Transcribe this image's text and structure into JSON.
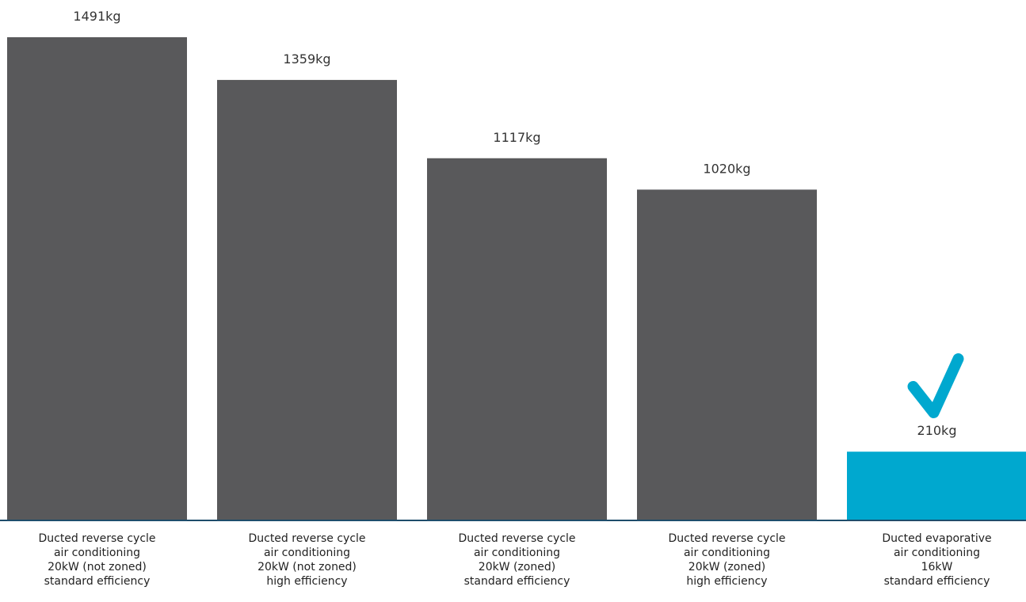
{
  "chart_data": {
    "type": "bar",
    "title": "",
    "xlabel": "",
    "ylabel": "",
    "ylim": [
      0,
      1491
    ],
    "grid": false,
    "legend": "none",
    "unit": "kg",
    "categories": [
      [
        "Ducted reverse cycle",
        "air conditioning",
        "20kW (not zoned)",
        "standard efficiency"
      ],
      [
        "Ducted reverse cycle",
        "air conditioning",
        "20kW (not zoned)",
        "high efficiency"
      ],
      [
        "Ducted reverse cycle",
        "air conditioning",
        "20kW (zoned)",
        "standard efficiency"
      ],
      [
        "Ducted reverse cycle",
        "air conditioning",
        "20kW (zoned)",
        "high efficiency"
      ],
      [
        "Ducted evaporative",
        "air conditioning",
        "16kW",
        "standard efficiency"
      ]
    ],
    "values": [
      1491,
      1359,
      1117,
      1020,
      210
    ],
    "value_labels": [
      "1491kg",
      "1359kg",
      "1117kg",
      "1020kg",
      "210kg"
    ],
    "highlight_index": 4,
    "highlight_marker": "checkmark-icon",
    "colors": {
      "bar": "#59595B",
      "highlight": "#00A8CF",
      "baseline": "#1E4D6B",
      "text": "#333333",
      "label_text": "#222222"
    }
  }
}
